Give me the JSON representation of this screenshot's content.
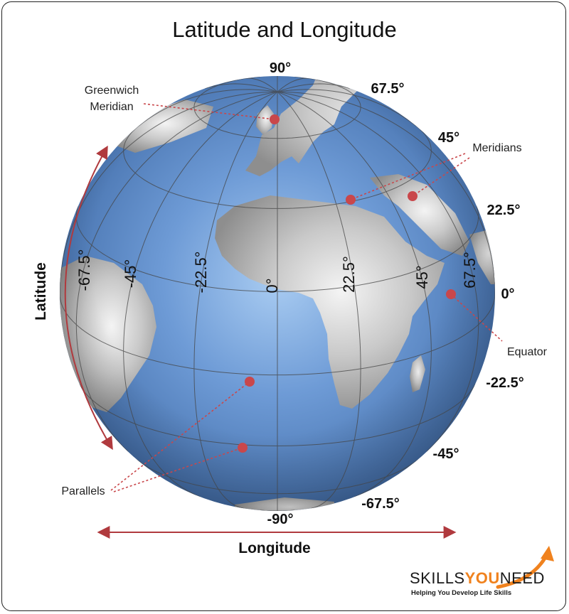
{
  "title": "Latitude and Longitude",
  "latitude_labels": [
    "90°",
    "67.5°",
    "45°",
    "22.5°",
    "0°",
    "-22.5°",
    "-45°",
    "-67.5°",
    "-90°"
  ],
  "longitude_labels": [
    "-67.5°",
    "-45°",
    "-22.5°",
    "0°",
    "22.5°",
    "45°",
    "67.5°"
  ],
  "annotations": {
    "greenwich": [
      "Greenwich",
      "Meridian"
    ],
    "meridians": "Meridians",
    "equator": "Equator",
    "parallels": "Parallels"
  },
  "axes": {
    "latitude": "Latitude",
    "longitude": "Longitude"
  },
  "brand": {
    "name_part1": "SKILLS",
    "name_part2": "YOU",
    "name_part3": "NEED",
    "tagline": "Helping You Develop Life Skills"
  },
  "colors": {
    "ocean": "#5b8ccc",
    "land": "#b9b9b9",
    "grid": "#444444",
    "marker": "#c9474b",
    "arrow": "#b03a3e",
    "brand_accent": "#f0821e"
  }
}
